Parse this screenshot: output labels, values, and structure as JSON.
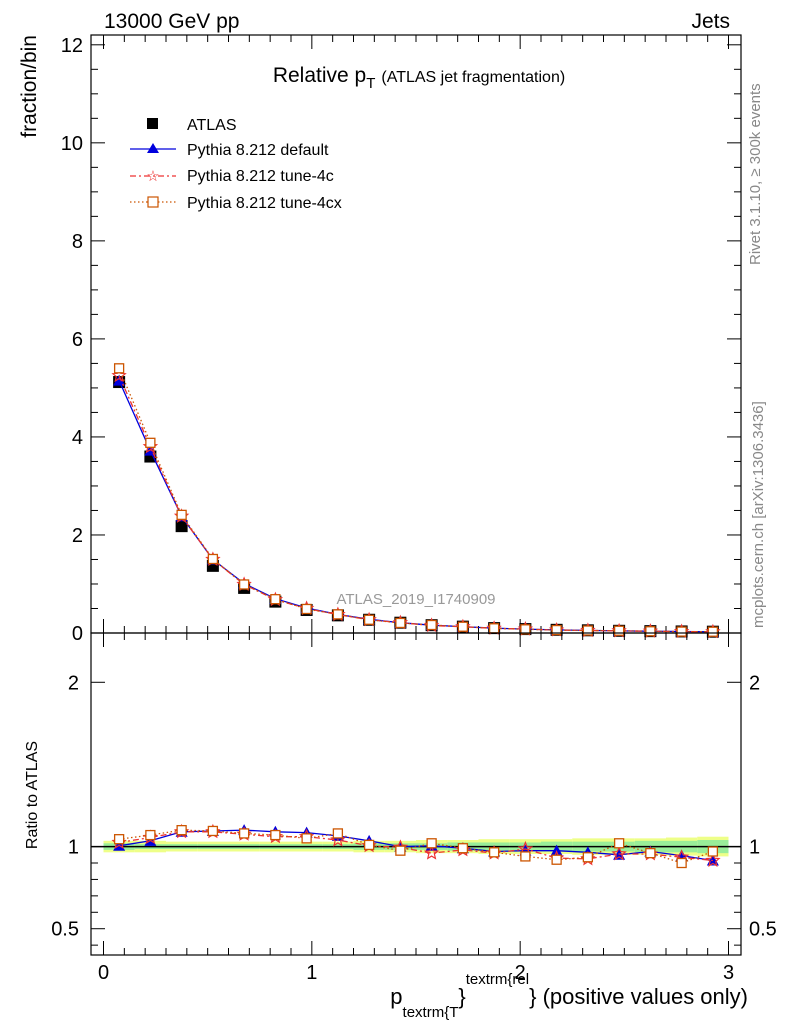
{
  "header": {
    "left": "13000 GeV pp",
    "right": "Jets"
  },
  "side_labels": {
    "rivet": "Rivet 3.1.10, ≥ 300k events",
    "mcplots": "mcplots.cern.ch [arXiv:1306.3436]"
  },
  "watermark": "ATLAS_2019_I1740909",
  "chart_data": [
    {
      "type": "line",
      "title_main": "Relative p",
      "title_sub": "T",
      "title_rest": "(ATLAS jet fragmentation)",
      "ylabel": "fraction/bin",
      "ylim": [
        0,
        12.2
      ],
      "yticks": [
        0,
        2,
        4,
        6,
        8,
        10,
        12
      ],
      "ytick_labels": [
        "0",
        "2",
        "4",
        "6",
        "8",
        "10",
        "12"
      ],
      "xlim": [
        -0.06,
        3.06
      ],
      "x": [
        0.075,
        0.225,
        0.375,
        0.525,
        0.675,
        0.825,
        0.975,
        1.125,
        1.275,
        1.425,
        1.575,
        1.725,
        1.875,
        2.025,
        2.175,
        2.325,
        2.475,
        2.625,
        2.775,
        2.925
      ],
      "legend_position": "top-left",
      "series": [
        {
          "name": "ATLAS",
          "color": "#000000",
          "marker": "square",
          "values": [
            5.12,
            3.6,
            2.18,
            1.37,
            0.92,
            0.64,
            0.47,
            0.36,
            0.27,
            0.21,
            0.16,
            0.13,
            0.1,
            0.08,
            0.065,
            0.055,
            0.045,
            0.038,
            0.032,
            0.027
          ]
        },
        {
          "name": "Pythia 8.212 default",
          "color": "#0000dd",
          "marker": "triangle",
          "values": [
            5.15,
            3.72,
            2.38,
            1.5,
            1.01,
            0.7,
            0.51,
            0.38,
            0.28,
            0.21,
            0.16,
            0.13,
            0.097,
            0.079,
            0.063,
            0.053,
            0.043,
            0.037,
            0.03,
            0.025
          ]
        },
        {
          "name": "Pythia 8.212 tune-4c",
          "color": "#ee3333",
          "marker": "star",
          "values": [
            5.25,
            3.8,
            2.38,
            1.5,
            0.99,
            0.68,
            0.5,
            0.375,
            0.27,
            0.21,
            0.153,
            0.127,
            0.096,
            0.079,
            0.06,
            0.051,
            0.043,
            0.036,
            0.029,
            0.025
          ]
        },
        {
          "name": "Pythia 8.212 tune-4cx",
          "color": "#cc5500",
          "marker": "open-square",
          "values": [
            5.4,
            3.88,
            2.41,
            1.51,
            0.99,
            0.69,
            0.49,
            0.38,
            0.27,
            0.205,
            0.163,
            0.128,
            0.096,
            0.075,
            0.06,
            0.051,
            0.046,
            0.036,
            0.029,
            0.026
          ]
        }
      ]
    },
    {
      "type": "line",
      "ylabel": "Ratio to ATLAS",
      "xlabel_main": "p",
      "xlabel_sub": "textrm{T",
      "xlabel_sup": "textrm{rel",
      "xlabel_close": "}",
      "xlabel_rest": "} (positive values only)",
      "ylim": [
        0.34,
        2.3
      ],
      "yticks": [
        0.5,
        1,
        2
      ],
      "ytick_labels": [
        "0.5",
        "1",
        "2"
      ],
      "xticks": [
        0,
        1,
        2,
        3
      ],
      "xtick_labels": [
        "0",
        "1",
        "2",
        "3"
      ],
      "xlim": [
        -0.06,
        3.06
      ],
      "x": [
        0.075,
        0.225,
        0.375,
        0.525,
        0.675,
        0.825,
        0.975,
        1.125,
        1.275,
        1.425,
        1.575,
        1.725,
        1.875,
        2.025,
        2.175,
        2.325,
        2.475,
        2.625,
        2.775,
        2.925
      ],
      "reference_line": 1,
      "band_inner": [
        0.02,
        0.015,
        0.015,
        0.015,
        0.015,
        0.015,
        0.015,
        0.015,
        0.02,
        0.02,
        0.02,
        0.025,
        0.025,
        0.025,
        0.03,
        0.03,
        0.03,
        0.035,
        0.035,
        0.04
      ],
      "band_outer": [
        0.035,
        0.035,
        0.03,
        0.03,
        0.03,
        0.03,
        0.03,
        0.03,
        0.035,
        0.035,
        0.04,
        0.04,
        0.045,
        0.045,
        0.045,
        0.05,
        0.05,
        0.05,
        0.055,
        0.06
      ],
      "series": [
        {
          "name": "Pythia 8.212 default",
          "color": "#0000dd",
          "marker": "triangle",
          "values": [
            1.005,
            1.035,
            1.09,
            1.095,
            1.1,
            1.09,
            1.085,
            1.065,
            1.035,
            1.0,
            1.005,
            0.99,
            0.97,
            0.975,
            0.975,
            0.965,
            0.95,
            0.97,
            0.945,
            0.915
          ]
        },
        {
          "name": "Pythia 8.212 tune-4c",
          "color": "#ee3333",
          "marker": "star",
          "values": [
            1.025,
            1.055,
            1.09,
            1.09,
            1.075,
            1.06,
            1.06,
            1.04,
            1.005,
            0.995,
            0.96,
            0.98,
            0.96,
            0.985,
            0.93,
            0.925,
            0.955,
            0.955,
            0.935,
            0.915
          ]
        },
        {
          "name": "Pythia 8.212 tune-4cx",
          "color": "#cc5500",
          "marker": "open-square",
          "values": [
            1.045,
            1.07,
            1.1,
            1.095,
            1.08,
            1.07,
            1.05,
            1.08,
            1.01,
            0.975,
            1.02,
            0.99,
            0.965,
            0.94,
            0.92,
            0.935,
            1.02,
            0.96,
            0.9,
            0.97
          ]
        }
      ]
    }
  ]
}
